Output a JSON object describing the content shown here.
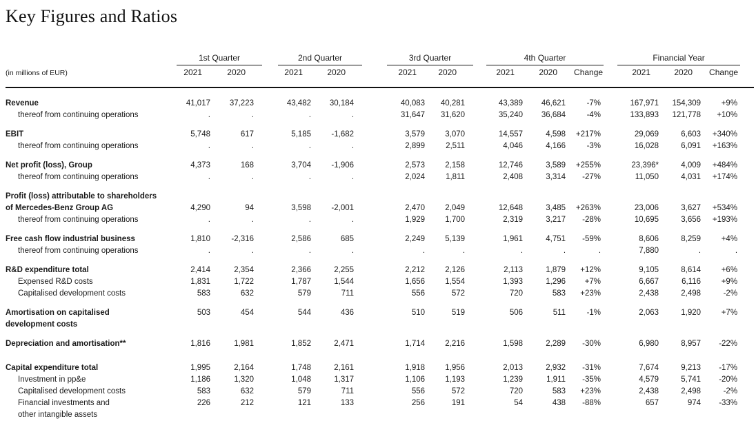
{
  "title": "Key Figures and Ratios",
  "unit_label": "(in millions of EUR)",
  "table": {
    "groups": [
      {
        "label": "1st Quarter",
        "years": [
          "2021",
          "2020"
        ]
      },
      {
        "label": "2nd Quarter",
        "years": [
          "2021",
          "2020"
        ]
      },
      {
        "label": "3rd Quarter",
        "years": [
          "2021",
          "2020"
        ]
      },
      {
        "label": "4th Quarter",
        "years": [
          "2021",
          "2020",
          "Change"
        ]
      },
      {
        "label": "Financial Year",
        "years": [
          "2021",
          "2020",
          "Change"
        ]
      }
    ],
    "rows": [
      {
        "label": "Revenue",
        "bold": true,
        "values": [
          "41,017",
          "37,223",
          "43,482",
          "30,184",
          "40,083",
          "40,281",
          "43,389",
          "46,621",
          "-7%",
          "167,971",
          "154,309",
          "+9%"
        ]
      },
      {
        "label": "thereof from continuing operations",
        "indent": true,
        "values": [
          ".",
          ".",
          ".",
          ".",
          "31,647",
          "31,620",
          "35,240",
          "36,684",
          "-4%",
          "133,893",
          "121,778",
          "+10%"
        ]
      },
      {
        "label": "EBIT",
        "bold": true,
        "gap": "s",
        "values": [
          "5,748",
          "617",
          "5,185",
          "-1,682",
          "3,579",
          "3,070",
          "14,557",
          "4,598",
          "+217%",
          "29,069",
          "6,603",
          "+340%"
        ]
      },
      {
        "label": "thereof from continuing operations",
        "indent": true,
        "values": [
          ".",
          ".",
          ".",
          ".",
          "2,899",
          "2,511",
          "4,046",
          "4,166",
          "-3%",
          "16,028",
          "6,091",
          "+163%"
        ]
      },
      {
        "label": "Net profit (loss), Group",
        "bold": true,
        "gap": "s",
        "values": [
          "4,373",
          "168",
          "3,704",
          "-1,906",
          "2,573",
          "2,158",
          "12,746",
          "3,589",
          "+255%",
          "23,396*",
          "4,009",
          "+484%"
        ]
      },
      {
        "label": "thereof from continuing operations",
        "indent": true,
        "values": [
          ".",
          ".",
          ".",
          ".",
          "2,024",
          "1,811",
          "2,408",
          "3,314",
          "-27%",
          "11,050",
          "4,031",
          "+174%"
        ]
      },
      {
        "label": "Profit (loss) attributable to shareholders",
        "label2": "of Mercedes-Benz Group AG",
        "bold": true,
        "gap": "s",
        "valign": "bottom",
        "values": [
          "4,290",
          "94",
          "3,598",
          "-2,001",
          "2,470",
          "2,049",
          "12,648",
          "3,485",
          "+263%",
          "23,006",
          "3,627",
          "+534%"
        ]
      },
      {
        "label": "thereof from continuing operations",
        "indent": true,
        "values": [
          ".",
          ".",
          ".",
          ".",
          "1,929",
          "1,700",
          "2,319",
          "3,217",
          "-28%",
          "10,695",
          "3,656",
          "+193%"
        ]
      },
      {
        "label": "Free cash flow industrial business",
        "bold": true,
        "gap": "s",
        "values": [
          "1,810",
          "-2,316",
          "2,586",
          "685",
          "2,249",
          "5,139",
          "1,961",
          "4,751",
          "-59%",
          "8,606",
          "8,259",
          "+4%"
        ]
      },
      {
        "label": "thereof from continuing operations",
        "indent": true,
        "values": [
          ".",
          ".",
          ".",
          ".",
          ".",
          ".",
          ".",
          ".",
          ".",
          "7,880",
          ".",
          "."
        ]
      },
      {
        "label": "R&D expenditure total",
        "bold": true,
        "gap": "s",
        "values": [
          "2,414",
          "2,354",
          "2,366",
          "2,255",
          "2,212",
          "2,126",
          "2,113",
          "1,879",
          "+12%",
          "9,105",
          "8,614",
          "+6%"
        ]
      },
      {
        "label": "Expensed R&D costs",
        "indent": true,
        "values": [
          "1,831",
          "1,722",
          "1,787",
          "1,544",
          "1,656",
          "1,554",
          "1,393",
          "1,296",
          "+7%",
          "6,667",
          "6,116",
          "+9%"
        ]
      },
      {
        "label": "Capitalised development costs",
        "indent": true,
        "values": [
          "583",
          "632",
          "579",
          "711",
          "556",
          "572",
          "720",
          "583",
          "+23%",
          "2,438",
          "2,498",
          "-2%"
        ]
      },
      {
        "label": "Amortisation on capitalised",
        "label2": "development costs",
        "bold": true,
        "gap": "s",
        "values": [
          "503",
          "454",
          "544",
          "436",
          "510",
          "519",
          "506",
          "511",
          "-1%",
          "2,063",
          "1,920",
          "+7%"
        ]
      },
      {
        "label": "Depreciation and amortisation**",
        "bold": true,
        "gap": "s",
        "values": [
          "1,816",
          "1,981",
          "1,852",
          "2,471",
          "1,714",
          "2,216",
          "1,598",
          "2,289",
          "-30%",
          "6,980",
          "8,957",
          "-22%"
        ]
      },
      {
        "label": "Capital expenditure total",
        "bold": true,
        "gap": "l",
        "values": [
          "1,995",
          "2,164",
          "1,748",
          "2,161",
          "1,918",
          "1,956",
          "2,013",
          "2,932",
          "-31%",
          "7,674",
          "9,213",
          "-17%"
        ]
      },
      {
        "label": "Investment in pp&e",
        "indent": true,
        "values": [
          "1,186",
          "1,320",
          "1,048",
          "1,317",
          "1,106",
          "1,193",
          "1,239",
          "1,911",
          "-35%",
          "4,579",
          "5,741",
          "-20%"
        ]
      },
      {
        "label": "Capitalised development costs",
        "indent": true,
        "values": [
          "583",
          "632",
          "579",
          "711",
          "556",
          "572",
          "720",
          "583",
          "+23%",
          "2,438",
          "2,498",
          "-2%"
        ]
      },
      {
        "label": "Financial investments and",
        "label2": "other intangible assets",
        "indent": true,
        "values": [
          "226",
          "212",
          "121",
          "133",
          "256",
          "191",
          "54",
          "438",
          "-88%",
          "657",
          "974",
          "-33%"
        ]
      }
    ]
  }
}
